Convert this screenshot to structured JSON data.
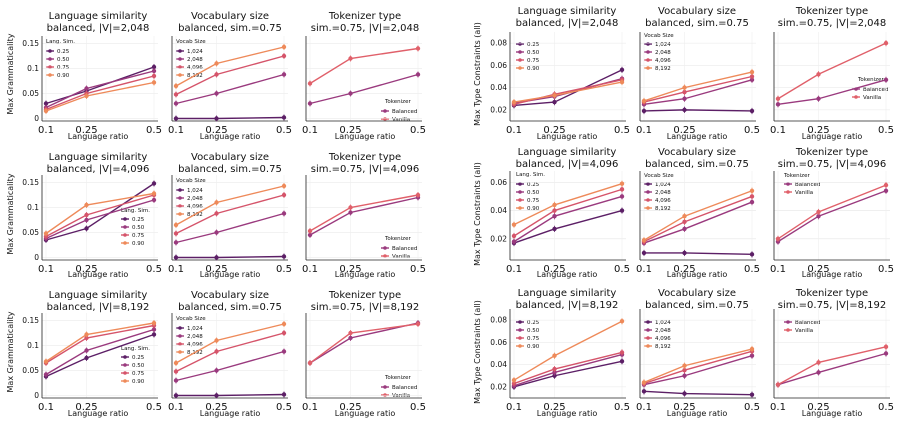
{
  "palette": {
    "c0": "#5c1f66",
    "c1": "#9a3a7e",
    "c2": "#d5546a",
    "c3": "#ee8a5a"
  },
  "text": {
    "xlabel": "Language ratio",
    "ylabel_left": "Max Grammaticality",
    "ylabel_right": "Max Type Constraints (all)",
    "title_sim": "Language similarity",
    "title_vocab": "Vocabulary size",
    "title_tok": "Tokenizer type",
    "sub_bal2048": "balanced, |V|=2,048",
    "sub_bal4096": "balanced, |V|=4,096",
    "sub_bal8192": "balanced, |V|=8,192",
    "sub_vocab": "balanced, sim.=0.75",
    "sub_tok2048": "sim.=0.75, |V|=2,048",
    "sub_tok4096": "sim.=0.75, |V|=4,096",
    "sub_tok8192": "sim.=0.75, |V|=8,192",
    "leg_sim": "Lang. Sim.",
    "leg_vocab": "Vocab Size",
    "leg_tok": "Tokenizer"
  },
  "chart_data": [
    {
      "type": "line",
      "title": "Language similarity",
      "subtitle": "balanced, |V|=2,048",
      "xlabel": "Language ratio",
      "ylabel": "Max Grammaticality",
      "x": [
        0.1,
        0.25,
        0.5
      ],
      "ylim": [
        -0.005,
        0.165
      ],
      "yticks": [
        0,
        0.05,
        0.1,
        0.15
      ],
      "legend_title": "Lang. Sim.",
      "legend_position": "top-left",
      "series": [
        {
          "name": "0.25",
          "values": [
            0.03,
            0.055,
            0.103
          ]
        },
        {
          "name": "0.50",
          "values": [
            0.022,
            0.06,
            0.095
          ]
        },
        {
          "name": "0.75",
          "values": [
            0.018,
            0.05,
            0.085
          ]
        },
        {
          "name": "0.90",
          "values": [
            0.015,
            0.045,
            0.072
          ]
        }
      ]
    },
    {
      "type": "line",
      "title": "Vocabulary size",
      "subtitle": "balanced, sim.=0.75",
      "xlabel": "Language ratio",
      "ylabel": "",
      "x": [
        0.1,
        0.25,
        0.5
      ],
      "ylim": [
        -0.005,
        0.165
      ],
      "yticks": [
        0,
        0.05,
        0.1,
        0.15
      ],
      "legend_title": "Vocab Size",
      "legend_position": "top-left",
      "series": [
        {
          "name": "1,024",
          "values": [
            0.0,
            0.0,
            0.002
          ]
        },
        {
          "name": "2,048",
          "values": [
            0.03,
            0.05,
            0.088
          ]
        },
        {
          "name": "4,096",
          "values": [
            0.048,
            0.088,
            0.125
          ]
        },
        {
          "name": "8,192",
          "values": [
            0.065,
            0.11,
            0.143
          ]
        }
      ]
    },
    {
      "type": "line",
      "title": "Tokenizer type",
      "subtitle": "sim.=0.75, |V|=2,048",
      "xlabel": "Language ratio",
      "ylabel": "",
      "x": [
        0.1,
        0.25,
        0.5
      ],
      "ylim": [
        -0.005,
        0.165
      ],
      "yticks": [
        0,
        0.05,
        0.1,
        0.15
      ],
      "legend_title": "Tokenizer",
      "legend_position": "lower-right",
      "series": [
        {
          "name": "Balanced",
          "values": [
            0.03,
            0.05,
            0.088
          ]
        },
        {
          "name": "Vanilla",
          "values": [
            0.07,
            0.12,
            0.14
          ]
        }
      ]
    },
    {
      "type": "line",
      "title": "Language similarity",
      "subtitle": "balanced, |V|=4,096",
      "xlabel": "Language ratio",
      "ylabel": "Max Grammaticality",
      "x": [
        0.1,
        0.25,
        0.5
      ],
      "ylim": [
        -0.005,
        0.165
      ],
      "yticks": [
        0,
        0.05,
        0.1,
        0.15
      ],
      "legend_title": "Lang. Sim.",
      "legend_position": "lower-right",
      "series": [
        {
          "name": "0.25",
          "values": [
            0.035,
            0.058,
            0.148
          ]
        },
        {
          "name": "0.50",
          "values": [
            0.038,
            0.075,
            0.115
          ]
        },
        {
          "name": "0.75",
          "values": [
            0.042,
            0.085,
            0.125
          ]
        },
        {
          "name": "0.90",
          "values": [
            0.048,
            0.105,
            0.128
          ]
        }
      ]
    },
    {
      "type": "line",
      "title": "Vocabulary size",
      "subtitle": "balanced, sim.=0.75",
      "xlabel": "Language ratio",
      "ylabel": "",
      "x": [
        0.1,
        0.25,
        0.5
      ],
      "ylim": [
        -0.005,
        0.165
      ],
      "yticks": [
        0,
        0.05,
        0.1,
        0.15
      ],
      "legend_title": "Vocab Size",
      "legend_position": "top-left",
      "series": [
        {
          "name": "1,024",
          "values": [
            0.0,
            0.0,
            0.002
          ]
        },
        {
          "name": "2,048",
          "values": [
            0.03,
            0.05,
            0.088
          ]
        },
        {
          "name": "4,096",
          "values": [
            0.048,
            0.088,
            0.125
          ]
        },
        {
          "name": "8,192",
          "values": [
            0.065,
            0.11,
            0.143
          ]
        }
      ]
    },
    {
      "type": "line",
      "title": "Tokenizer type",
      "subtitle": "sim.=0.75, |V|=4,096",
      "xlabel": "Language ratio",
      "ylabel": "",
      "x": [
        0.1,
        0.25,
        0.5
      ],
      "ylim": [
        -0.005,
        0.165
      ],
      "yticks": [
        0,
        0.05,
        0.1,
        0.15
      ],
      "legend_title": "Tokenizer",
      "legend_position": "lower-right",
      "series": [
        {
          "name": "Balanced",
          "values": [
            0.045,
            0.09,
            0.12
          ]
        },
        {
          "name": "Vanilla",
          "values": [
            0.053,
            0.1,
            0.125
          ]
        }
      ]
    },
    {
      "type": "line",
      "title": "Language similarity",
      "subtitle": "balanced, |V|=8,192",
      "xlabel": "Language ratio",
      "ylabel": "Max Grammaticality",
      "x": [
        0.1,
        0.25,
        0.5
      ],
      "ylim": [
        -0.005,
        0.165
      ],
      "yticks": [
        0,
        0.05,
        0.1,
        0.15
      ],
      "legend_title": "Lang. Sim.",
      "legend_position": "lower-right",
      "series": [
        {
          "name": "0.25",
          "values": [
            0.038,
            0.075,
            0.122
          ]
        },
        {
          "name": "0.50",
          "values": [
            0.042,
            0.09,
            0.132
          ]
        },
        {
          "name": "0.75",
          "values": [
            0.065,
            0.115,
            0.14
          ]
        },
        {
          "name": "0.90",
          "values": [
            0.068,
            0.122,
            0.145
          ]
        }
      ]
    },
    {
      "type": "line",
      "title": "Vocabulary size",
      "subtitle": "balanced, sim.=0.75",
      "xlabel": "Language ratio",
      "ylabel": "",
      "x": [
        0.1,
        0.25,
        0.5
      ],
      "ylim": [
        -0.005,
        0.165
      ],
      "yticks": [
        0,
        0.05,
        0.1,
        0.15
      ],
      "legend_title": "Vocab Size",
      "legend_position": "top-left",
      "series": [
        {
          "name": "1,024",
          "values": [
            0.0,
            0.0,
            0.002
          ]
        },
        {
          "name": "2,048",
          "values": [
            0.03,
            0.05,
            0.088
          ]
        },
        {
          "name": "4,096",
          "values": [
            0.048,
            0.088,
            0.125
          ]
        },
        {
          "name": "8,192",
          "values": [
            0.065,
            0.11,
            0.143
          ]
        }
      ]
    },
    {
      "type": "line",
      "title": "Tokenizer type",
      "subtitle": "sim.=0.75, |V|=8,192",
      "xlabel": "Language ratio",
      "ylabel": "",
      "x": [
        0.1,
        0.25,
        0.5
      ],
      "ylim": [
        -0.005,
        0.165
      ],
      "yticks": [
        0,
        0.05,
        0.1,
        0.15
      ],
      "legend_title": "Tokenizer",
      "legend_position": "lower-right",
      "series": [
        {
          "name": "Balanced",
          "values": [
            0.065,
            0.115,
            0.145
          ]
        },
        {
          "name": "Vanilla",
          "values": [
            0.065,
            0.125,
            0.143
          ]
        }
      ]
    },
    {
      "type": "line",
      "title": "Language similarity",
      "subtitle": "balanced, |V|=2,048",
      "xlabel": "Language ratio",
      "ylabel": "Max Type Constraints (all)",
      "x": [
        0.1,
        0.25,
        0.5
      ],
      "ylim": [
        0.01,
        0.09
      ],
      "yticks": [
        0.02,
        0.04,
        0.06,
        0.08
      ],
      "legend_title": "",
      "legend_position": "top-left",
      "series": [
        {
          "name": "0.25",
          "values": [
            0.024,
            0.027,
            0.056
          ]
        },
        {
          "name": "0.50",
          "values": [
            0.026,
            0.032,
            0.048
          ]
        },
        {
          "name": "0.75",
          "values": [
            0.025,
            0.034,
            0.047
          ]
        },
        {
          "name": "0.90",
          "values": [
            0.027,
            0.033,
            0.045
          ]
        }
      ]
    },
    {
      "type": "line",
      "title": "Vocabulary size",
      "subtitle": "balanced, sim.=0.75",
      "xlabel": "Language ratio",
      "ylabel": "",
      "x": [
        0.1,
        0.25,
        0.5
      ],
      "ylim": [
        0.01,
        0.09
      ],
      "yticks": [
        0.02,
        0.04,
        0.06,
        0.08
      ],
      "legend_title": "Vocab Size",
      "legend_position": "top-left",
      "series": [
        {
          "name": "1,024",
          "values": [
            0.019,
            0.02,
            0.019
          ]
        },
        {
          "name": "2,048",
          "values": [
            0.025,
            0.03,
            0.047
          ]
        },
        {
          "name": "4,096",
          "values": [
            0.027,
            0.036,
            0.05
          ]
        },
        {
          "name": "8,192",
          "values": [
            0.028,
            0.04,
            0.054
          ]
        }
      ]
    },
    {
      "type": "line",
      "title": "Tokenizer type",
      "subtitle": "sim.=0.75, |V|=2,048",
      "xlabel": "Language ratio",
      "ylabel": "",
      "x": [
        0.1,
        0.25,
        0.5
      ],
      "ylim": [
        0.01,
        0.09
      ],
      "yticks": [
        0.02,
        0.04,
        0.06,
        0.08
      ],
      "legend_title": "Tokenizer",
      "legend_position": "lower-right",
      "series": [
        {
          "name": "Balanced",
          "values": [
            0.025,
            0.03,
            0.047
          ]
        },
        {
          "name": "Vanilla",
          "values": [
            0.03,
            0.052,
            0.08
          ]
        }
      ]
    },
    {
      "type": "line",
      "title": "Language similarity",
      "subtitle": "balanced, |V|=4,096",
      "xlabel": "Language ratio",
      "ylabel": "Max Type Constraints (all)",
      "x": [
        0.1,
        0.25,
        0.5
      ],
      "ylim": [
        0.005,
        0.068
      ],
      "yticks": [
        0.02,
        0.04,
        0.06
      ],
      "legend_title": "Lang. Sim.",
      "legend_position": "top-left",
      "series": [
        {
          "name": "0.25",
          "values": [
            0.017,
            0.027,
            0.04
          ]
        },
        {
          "name": "0.50",
          "values": [
            0.018,
            0.036,
            0.05
          ]
        },
        {
          "name": "0.75",
          "values": [
            0.022,
            0.04,
            0.055
          ]
        },
        {
          "name": "0.90",
          "values": [
            0.03,
            0.044,
            0.059
          ]
        }
      ]
    },
    {
      "type": "line",
      "title": "Vocabulary size",
      "subtitle": "balanced, sim.=0.75",
      "xlabel": "Language ratio",
      "ylabel": "",
      "x": [
        0.1,
        0.25,
        0.5
      ],
      "ylim": [
        0.005,
        0.068
      ],
      "yticks": [
        0.02,
        0.04,
        0.06
      ],
      "legend_title": "Vocab Size",
      "legend_position": "top-left",
      "series": [
        {
          "name": "1,024",
          "values": [
            0.01,
            0.01,
            0.009
          ]
        },
        {
          "name": "2,048",
          "values": [
            0.017,
            0.027,
            0.046
          ]
        },
        {
          "name": "4,096",
          "values": [
            0.018,
            0.032,
            0.05
          ]
        },
        {
          "name": "8,192",
          "values": [
            0.019,
            0.036,
            0.054
          ]
        }
      ]
    },
    {
      "type": "line",
      "title": "Tokenizer type",
      "subtitle": "sim.=0.75, |V|=4,096",
      "xlabel": "Language ratio",
      "ylabel": "",
      "x": [
        0.1,
        0.25,
        0.5
      ],
      "ylim": [
        0.005,
        0.068
      ],
      "yticks": [
        0.02,
        0.04,
        0.06
      ],
      "legend_title": "Tokenizer",
      "legend_position": "top-left",
      "series": [
        {
          "name": "Balanced",
          "values": [
            0.018,
            0.036,
            0.054
          ]
        },
        {
          "name": "Vanilla",
          "values": [
            0.02,
            0.039,
            0.058
          ]
        }
      ]
    },
    {
      "type": "line",
      "title": "Language similarity",
      "subtitle": "balanced, |V|=8,192",
      "xlabel": "Language ratio",
      "ylabel": "Max Type Constraints (all)",
      "x": [
        0.1,
        0.25,
        0.5
      ],
      "ylim": [
        0.01,
        0.09
      ],
      "yticks": [
        0.02,
        0.04,
        0.06,
        0.08
      ],
      "legend_title": "",
      "legend_position": "top-left",
      "series": [
        {
          "name": "0.25",
          "values": [
            0.02,
            0.03,
            0.043
          ]
        },
        {
          "name": "0.50",
          "values": [
            0.021,
            0.033,
            0.049
          ]
        },
        {
          "name": "0.75",
          "values": [
            0.023,
            0.036,
            0.051
          ]
        },
        {
          "name": "0.90",
          "values": [
            0.026,
            0.048,
            0.079
          ]
        }
      ]
    },
    {
      "type": "line",
      "title": "Vocabulary size",
      "subtitle": "balanced, sim.=0.75",
      "xlabel": "Language ratio",
      "ylabel": "",
      "x": [
        0.1,
        0.25,
        0.5
      ],
      "ylim": [
        0.01,
        0.09
      ],
      "yticks": [
        0.02,
        0.04,
        0.06,
        0.08
      ],
      "legend_title": "Vocab Size",
      "legend_position": "top-left",
      "series": [
        {
          "name": "1,024",
          "values": [
            0.016,
            0.014,
            0.013
          ]
        },
        {
          "name": "2,048",
          "values": [
            0.022,
            0.03,
            0.048
          ]
        },
        {
          "name": "4,096",
          "values": [
            0.023,
            0.035,
            0.052
          ]
        },
        {
          "name": "8,192",
          "values": [
            0.024,
            0.039,
            0.054
          ]
        }
      ]
    },
    {
      "type": "line",
      "title": "Tokenizer type",
      "subtitle": "sim.=0.75, |V|=8,192",
      "xlabel": "Language ratio",
      "ylabel": "",
      "x": [
        0.1,
        0.25,
        0.5
      ],
      "ylim": [
        0.01,
        0.09
      ],
      "yticks": [
        0.02,
        0.04,
        0.06,
        0.08
      ],
      "legend_title": "",
      "legend_position": "top-left",
      "series": [
        {
          "name": "Balanced",
          "values": [
            0.022,
            0.033,
            0.05
          ]
        },
        {
          "name": "Vanilla",
          "values": [
            0.022,
            0.042,
            0.056
          ]
        }
      ]
    }
  ]
}
